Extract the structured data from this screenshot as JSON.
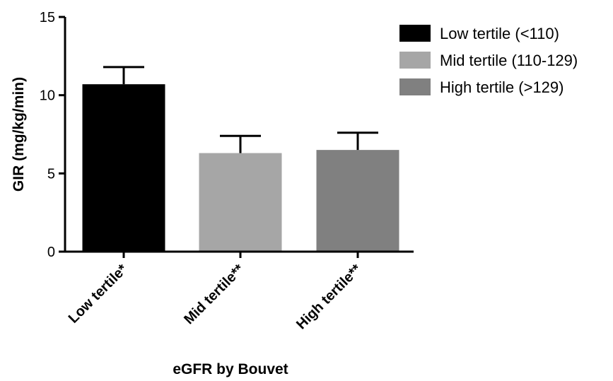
{
  "chart_data": {
    "type": "bar",
    "title": "",
    "xlabel": "eGFR by Bouvet",
    "ylabel": "GIR (mg/kg/min)",
    "ylim": [
      0,
      15
    ],
    "yticks": [
      "0",
      "5",
      "10",
      "15"
    ],
    "ytick_values": [
      0,
      5,
      10,
      15
    ],
    "categories": [
      "Low tertile*",
      "Mid tertile**",
      "High tertile**"
    ],
    "values": [
      10.7,
      6.3,
      6.5
    ],
    "error_upper": [
      11.8,
      7.4,
      7.6
    ],
    "error_style": "upper-only",
    "colors": [
      "#000000",
      "#a6a6a6",
      "#808080"
    ],
    "legend": {
      "placement": "top-right",
      "entries": [
        {
          "label": "Low tertile (<110)",
          "color": "#000000"
        },
        {
          "label": "Mid tertile (110-129)",
          "color": "#a6a6a6"
        },
        {
          "label": "High tertile (>129)",
          "color": "#808080"
        }
      ]
    },
    "grid": false
  }
}
